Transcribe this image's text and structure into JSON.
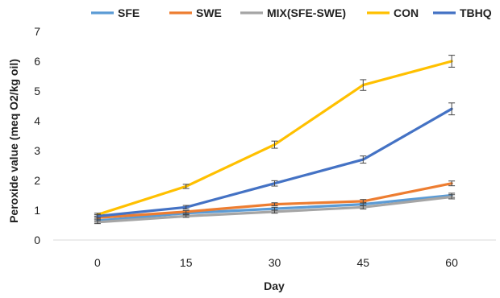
{
  "chart_data": {
    "type": "line",
    "title": "",
    "xlabel": "Day",
    "ylabel": "Peroxide value (meq O2/kg oil)",
    "categories": [
      "0",
      "15",
      "30",
      "45",
      "60"
    ],
    "ylim": [
      0,
      7
    ],
    "yticks": [
      "0",
      "1",
      "2",
      "3",
      "4",
      "5",
      "6",
      "7"
    ],
    "grid": false,
    "legend_position": "top",
    "error_bars": true,
    "series": [
      {
        "name": "SFE",
        "color": "#5b9bd5",
        "values": [
          0.65,
          0.9,
          1.05,
          1.2,
          1.5
        ],
        "errors": [
          0.05,
          0.04,
          0.05,
          0.06,
          0.07
        ]
      },
      {
        "name": "SWE",
        "color": "#ed7d31",
        "values": [
          0.75,
          0.95,
          1.2,
          1.3,
          1.9
        ],
        "errors": [
          0.05,
          0.04,
          0.05,
          0.06,
          0.08
        ]
      },
      {
        "name": "MIX(SFE-SWE)",
        "color": "#a5a5a5",
        "values": [
          0.6,
          0.8,
          0.95,
          1.1,
          1.45
        ],
        "errors": [
          0.05,
          0.04,
          0.05,
          0.06,
          0.07
        ]
      },
      {
        "name": "CON",
        "color": "#ffc000",
        "values": [
          0.85,
          1.8,
          3.2,
          5.2,
          6.0
        ],
        "errors": [
          0.05,
          0.07,
          0.12,
          0.18,
          0.2
        ]
      },
      {
        "name": "TBHQ",
        "color": "#4472c4",
        "values": [
          0.8,
          1.1,
          1.9,
          2.7,
          4.4
        ],
        "errors": [
          0.05,
          0.06,
          0.09,
          0.12,
          0.2
        ]
      }
    ]
  }
}
